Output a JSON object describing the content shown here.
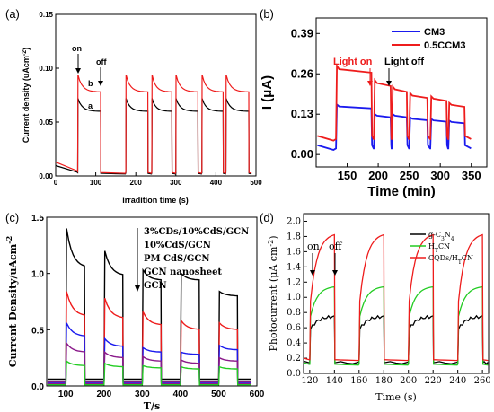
{
  "chart_data": [
    {
      "panel": "(a)",
      "type": "line",
      "xlabel": "irradition time (s)",
      "ylabel": "Current density (uAcm",
      "ylabel_sup": "-2",
      "ylabel_end": ")",
      "xlim": [
        0,
        500
      ],
      "ylim": [
        0.0,
        0.15
      ],
      "xticks": [
        0,
        100,
        200,
        300,
        400,
        500
      ],
      "yticks": [
        0.0,
        0.05,
        0.1,
        0.15
      ],
      "ytick_labels": [
        "0.00",
        "0.05",
        "0.10",
        "0.15"
      ],
      "annotations": {
        "on": "on",
        "off": "off",
        "curve_a": "a",
        "curve_b": "b"
      },
      "colors": {
        "a": "#000000",
        "b": "#ee1c1c"
      },
      "cycles": [
        [
          55,
          112
        ],
        [
          175,
          230
        ],
        [
          240,
          290
        ],
        [
          300,
          355
        ],
        [
          365,
          418
        ],
        [
          425,
          482
        ]
      ],
      "series": [
        {
          "key": "a",
          "dark": 0.006,
          "peak": 0.072,
          "plateau": 0.06
        },
        {
          "key": "b",
          "dark": 0.008,
          "peak": 0.094,
          "plateau": 0.078
        }
      ]
    },
    {
      "panel": "(b)",
      "type": "line",
      "xlabel": "Time (min)",
      "ylabel": "I (μA)",
      "xlim": [
        100,
        375
      ],
      "ylim": [
        -0.04,
        0.44
      ],
      "xticks": [
        150,
        200,
        250,
        300,
        350
      ],
      "yticks": [
        0.0,
        0.13,
        0.26,
        0.39
      ],
      "ytick_labels": [
        "0.00",
        "0.13",
        "0.26",
        "0.39"
      ],
      "annotations": {
        "light_on": "Light on",
        "light_off": "Light off"
      },
      "colors": {
        "CM3": "#1a1aee",
        "0.5CCM3": "#ee1c1c",
        "light_on": "#ee1c1c"
      },
      "cycles": [
        [
          132,
          193
        ],
        [
          193,
          222
        ],
        [
          222,
          249
        ],
        [
          249,
          283
        ],
        [
          283,
          313
        ],
        [
          313,
          341
        ]
      ],
      "on_cycles": [
        [
          132,
          190
        ],
        [
          193,
          221
        ],
        [
          222,
          247
        ],
        [
          250,
          280
        ],
        [
          284,
          311
        ],
        [
          313,
          340
        ]
      ],
      "series": [
        {
          "name": "CM3",
          "dark": 0.02,
          "levels": [
            0.155,
            0.125,
            0.125,
            0.115,
            0.11,
            0.105
          ]
        },
        {
          "name": "0.5CCM3",
          "dark": 0.05,
          "levels": [
            0.275,
            0.23,
            0.21,
            0.19,
            0.18,
            0.16
          ]
        }
      ]
    },
    {
      "panel": "(c)",
      "type": "line",
      "xlabel": "T/s",
      "ylabel": "Current Density/uAcm",
      "ylabel_sup": "-2",
      "xlim": [
        50,
        600
      ],
      "ylim": [
        0.0,
        1.5
      ],
      "xticks": [
        100,
        200,
        300,
        400,
        500,
        600
      ],
      "yticks": [
        0.0,
        0.5,
        1.0,
        1.5
      ],
      "ytick_labels": [
        "0.0",
        "0.5",
        "1.0",
        "1.5"
      ],
      "cycles": [
        [
          100,
          150
        ],
        [
          200,
          250
        ],
        [
          300,
          350
        ],
        [
          400,
          450
        ],
        [
          500,
          550
        ]
      ],
      "series": [
        {
          "name": "3%CDs/10%CdS/GCN",
          "color": "#000000",
          "dark": 0.06,
          "levels": [
            1.4,
            1.2,
            1.03,
            1.0,
            0.84
          ],
          "ends": [
            1.05,
            0.98,
            0.94,
            0.94,
            0.8
          ]
        },
        {
          "name": "10%CdS/GCN",
          "color": "#ee1c1c",
          "dark": 0.04,
          "levels": [
            0.84,
            0.78,
            0.66,
            0.58,
            0.56
          ],
          "ends": [
            0.62,
            0.6,
            0.54,
            0.5,
            0.5
          ]
        },
        {
          "name": "PM CdS/GCN",
          "color": "#1a1aee",
          "dark": 0.03,
          "levels": [
            0.56,
            0.42,
            0.34,
            0.3,
            0.36
          ],
          "ends": [
            0.44,
            0.35,
            0.3,
            0.28,
            0.32
          ]
        },
        {
          "name": "GCN nanosheet",
          "color": "#8a1a8a",
          "dark": 0.02,
          "levels": [
            0.38,
            0.3,
            0.26,
            0.23,
            0.25
          ],
          "ends": [
            0.3,
            0.25,
            0.22,
            0.2,
            0.22
          ]
        },
        {
          "name": "GCN",
          "color": "#22cc22",
          "dark": 0.01,
          "levels": [
            0.22,
            0.2,
            0.18,
            0.17,
            0.17
          ],
          "ends": [
            0.18,
            0.17,
            0.16,
            0.15,
            0.15
          ]
        }
      ]
    },
    {
      "panel": "(d)",
      "type": "line",
      "xlabel": "Time (s)",
      "ylabel": "Photocurrent (μA cm",
      "ylabel_sup": "-2",
      "ylabel_end": ")",
      "xlim": [
        115,
        265
      ],
      "ylim": [
        0.0,
        2.1
      ],
      "xticks": [
        120,
        140,
        160,
        180,
        200,
        220,
        240,
        260
      ],
      "yticks": [
        0.0,
        0.2,
        0.4,
        0.6,
        0.8,
        1.0,
        1.2,
        1.4,
        1.6,
        1.8,
        2.0
      ],
      "ytick_labels": [
        "0.0",
        "0.2",
        "0.4",
        "0.6",
        "0.8",
        "1.0",
        "1.2",
        "1.4",
        "1.6",
        "1.8",
        "2.0"
      ],
      "annotations": {
        "on": "on",
        "off": "off"
      },
      "cycles": [
        [
          120,
          140
        ],
        [
          160,
          180
        ],
        [
          200,
          220
        ],
        [
          240,
          260
        ]
      ],
      "series": [
        {
          "name": "g-C",
          "sub1": "3",
          "mid": "N",
          "sub2": "4",
          "color": "#000000",
          "dark": 0.14,
          "start": 0.58,
          "level": 0.75
        },
        {
          "name": "H",
          "sub1": "T",
          "mid": "CN",
          "sub2": "",
          "color": "#22cc22",
          "dark": 0.12,
          "start": 0.75,
          "level": 1.15
        },
        {
          "name": "CQDs/H",
          "sub1": "T",
          "mid": "CN",
          "sub2": "",
          "color": "#ee1c1c",
          "dark": 0.18,
          "start": 0.95,
          "level": 1.85
        }
      ]
    }
  ]
}
